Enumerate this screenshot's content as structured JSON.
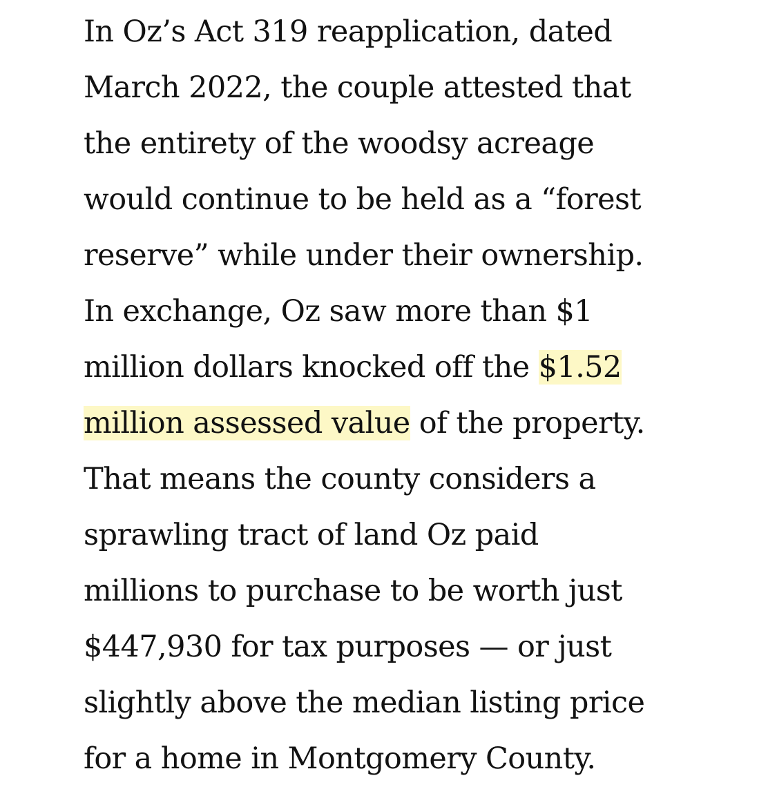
{
  "article": {
    "paragraph_lines": [
      "In Oz’s Act 319 reapplication, dated",
      "March 2022, the couple attested that",
      "the entirety of the woodsy acreage",
      "would continue to be held as a “forest",
      "reserve” while under their ownership.",
      "In exchange, Oz saw more than $1",
      "million dollars knocked off the ",
      "$1.52",
      "million assessed value",
      " of the property.",
      "That means the county considers a",
      "sprawling tract of land Oz paid",
      "millions to purchase to be worth just",
      "$447,930 for tax purposes — or just",
      "slightly above the median listing price",
      "for a home in Montgomery County."
    ],
    "highlight_color": "#fdf8c6",
    "text_color": "#121212"
  }
}
